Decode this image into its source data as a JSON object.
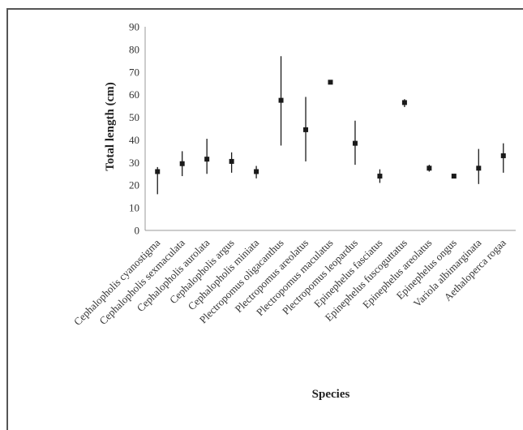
{
  "chart_data": {
    "type": "scatter",
    "xlabel": "Species",
    "ylabel": "Total length (cm)",
    "ylim": [
      0,
      90
    ],
    "yticks": [
      0,
      10,
      20,
      30,
      40,
      50,
      60,
      70,
      80,
      90
    ],
    "grid": false,
    "legend": "none",
    "colors": {
      "marker": "#1a1a1a",
      "axis": "#999999",
      "text": "#333333"
    },
    "categories": [
      "Cephalopholis cyanostigma",
      "Cephalopholis sexmaculata",
      "Cephalopholis aurolata",
      "Cephalopholis argus",
      "Cephalopholis miniata",
      "Plectropomus oligacanthus",
      "Plectropomus areolatus",
      "Plectropomus maculatus",
      "Plectropomus leopardus",
      "Epinephelus fasciatus",
      "Epinephelus fuscoguttatus",
      "Epinephelus areolatus",
      "Epinephelus ongus",
      "Variola albimarginata",
      "Aethaloperca rogaa"
    ],
    "series": [
      {
        "values": [
          26,
          29.5,
          31.5,
          30.5,
          26,
          57.5,
          44.5,
          65.5,
          38.5,
          24,
          56.5,
          27.5,
          24,
          27.5,
          33
        ],
        "min": [
          16,
          24,
          25,
          25.5,
          23,
          37.5,
          30.5,
          65.5,
          29,
          21,
          54.5,
          26,
          24,
          20.5,
          25.5
        ],
        "max": [
          28,
          35,
          40.5,
          34.5,
          28.5,
          77,
          59,
          65.5,
          48.5,
          27,
          58,
          29,
          24,
          36,
          38.5
        ]
      }
    ]
  }
}
